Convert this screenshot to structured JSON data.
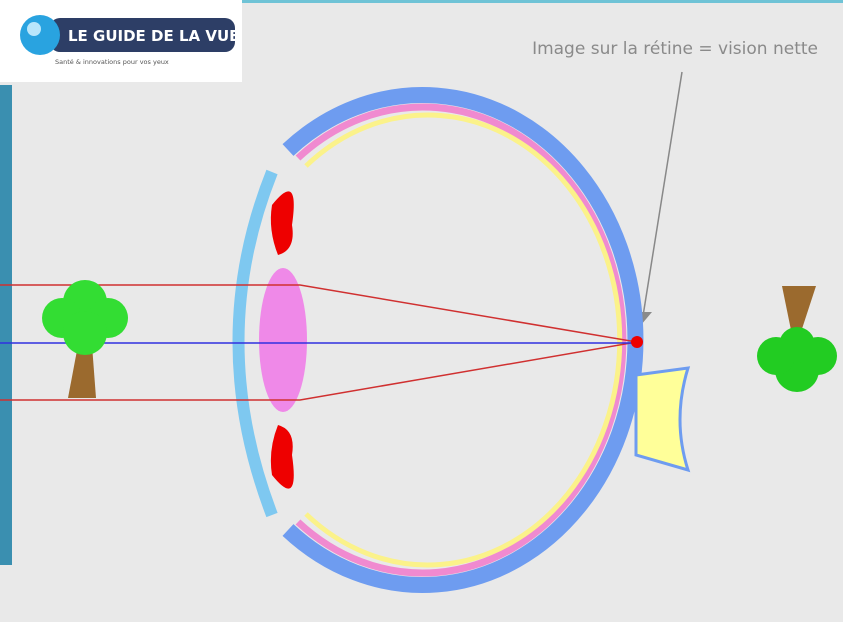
{
  "logo": {
    "title": "LE GUIDE DE LA VUE",
    "tagline": "Santé & innovations pour vos yeux"
  },
  "annotation": "Image sur la rétine = vision nette"
}
